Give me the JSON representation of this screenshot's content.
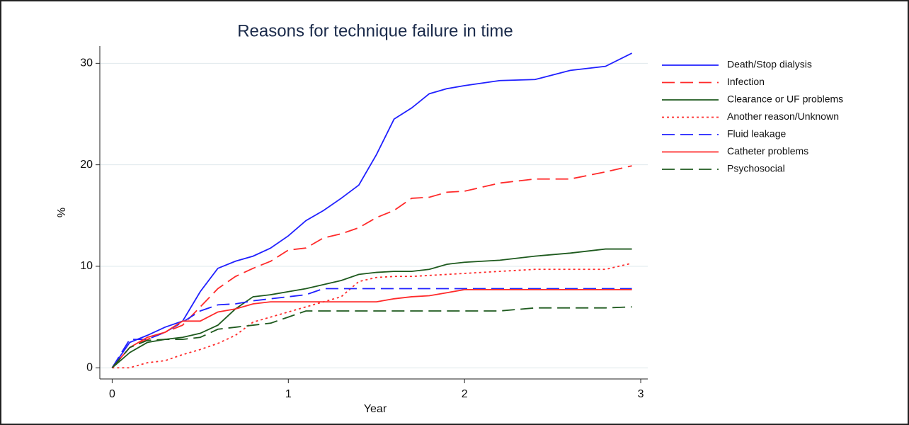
{
  "chart_data": {
    "type": "line",
    "title": "Reasons for technique failure in time",
    "xlabel": "Year",
    "ylabel": "%",
    "x": [
      0,
      0.1,
      0.2,
      0.3,
      0.4,
      0.5,
      0.6,
      0.7,
      0.8,
      0.9,
      1.0,
      1.1,
      1.2,
      1.3,
      1.4,
      1.5,
      1.6,
      1.7,
      1.8,
      1.9,
      2.0,
      2.2,
      2.4,
      2.6,
      2.8,
      2.95
    ],
    "series": [
      {
        "name": "Death/Stop dialysis",
        "color": "#2020ff",
        "dash": "solid",
        "values": [
          0,
          2.5,
          3.2,
          4,
          4.6,
          7.5,
          9.8,
          10.5,
          11,
          11.8,
          13,
          14.5,
          15.5,
          16.7,
          18,
          21,
          24.5,
          25.6,
          27,
          27.5,
          27.8,
          28.3,
          28.4,
          29.3,
          29.7,
          31
        ]
      },
      {
        "name": "Infection",
        "color": "#ff2a2a",
        "dash": "dashed",
        "values": [
          0,
          2,
          2.8,
          3.5,
          4.2,
          6,
          7.8,
          9,
          9.8,
          10.5,
          11.6,
          11.8,
          12.8,
          13.2,
          13.8,
          14.8,
          15.5,
          16.7,
          16.8,
          17.3,
          17.4,
          18.2,
          18.6,
          18.6,
          19.3,
          19.9
        ]
      },
      {
        "name": "Clearance or UF problems",
        "color": "#1e5a1e",
        "dash": "solid",
        "values": [
          0,
          1.5,
          2.5,
          2.8,
          3,
          3.4,
          4.2,
          5.8,
          7,
          7.2,
          7.5,
          7.8,
          8.2,
          8.6,
          9.2,
          9.4,
          9.5,
          9.5,
          9.7,
          10.2,
          10.4,
          10.6,
          11,
          11.3,
          11.7,
          11.7
        ]
      },
      {
        "name": "Another reason/Unknown",
        "color": "#ff2a2a",
        "dash": "dotted",
        "values": [
          0,
          0,
          0.5,
          0.7,
          1.3,
          1.8,
          2.4,
          3.2,
          4.5,
          5,
          5.5,
          6,
          6.5,
          7,
          8.5,
          8.9,
          9,
          9,
          9.1,
          9.2,
          9.3,
          9.5,
          9.7,
          9.7,
          9.7,
          10.3
        ]
      },
      {
        "name": "Fluid leakage",
        "color": "#2020ff",
        "dash": "dashed",
        "values": [
          0,
          2.8,
          2.8,
          3.5,
          4.5,
          5.6,
          6.2,
          6.3,
          6.6,
          6.8,
          7,
          7.2,
          7.8,
          7.8,
          7.8,
          7.8,
          7.8,
          7.8,
          7.8,
          7.8,
          7.8,
          7.8,
          7.8,
          7.8,
          7.8,
          7.8
        ]
      },
      {
        "name": "Catheter problems",
        "color": "#ff2a2a",
        "dash": "solid",
        "values": [
          0,
          2,
          3,
          3.5,
          4.6,
          4.6,
          5.5,
          5.8,
          6.3,
          6.5,
          6.5,
          6.5,
          6.5,
          6.5,
          6.5,
          6.5,
          6.8,
          7,
          7.1,
          7.4,
          7.7,
          7.7,
          7.7,
          7.7,
          7.7,
          7.7
        ]
      },
      {
        "name": "Psychosocial",
        "color": "#1e5a1e",
        "dash": "dashed",
        "values": [
          0,
          2,
          2.7,
          2.8,
          2.8,
          3,
          3.8,
          4,
          4.2,
          4.4,
          5,
          5.6,
          5.6,
          5.6,
          5.6,
          5.6,
          5.6,
          5.6,
          5.6,
          5.6,
          5.6,
          5.6,
          5.9,
          5.9,
          5.9,
          6
        ]
      }
    ],
    "xlim": [
      -0.07,
      3.04
    ],
    "xticks": [
      0,
      1,
      2,
      3
    ],
    "ylim": [
      -1.1,
      31.7
    ],
    "yticks": [
      0,
      10,
      20,
      30
    ],
    "grid": true,
    "legend": "right"
  }
}
